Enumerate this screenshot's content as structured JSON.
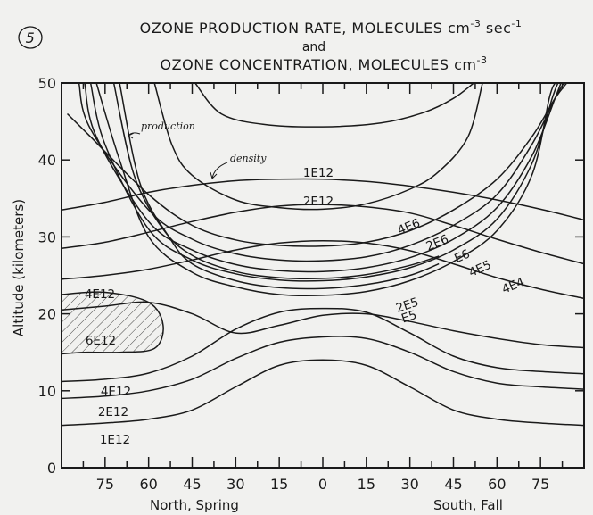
{
  "figure_number": "5",
  "chart_data": {
    "type": "contour",
    "title": {
      "line1_main": "OZONE PRODUCTION RATE, MOLECULES cm",
      "line1_sup1": "-3",
      "line1_mid": " sec",
      "line1_sup2": "-1",
      "line2": "and",
      "line3_main": "OZONE CONCENTRATION, MOLECULES cm",
      "line3_sup": "-3"
    },
    "ylabel": "Altitude (kilometers)",
    "ylim": [
      0,
      50
    ],
    "yticks": [
      "0",
      "10",
      "20",
      "30",
      "40",
      "50"
    ],
    "xticks": [
      "75",
      "60",
      "45",
      "30",
      "15",
      "0",
      "15",
      "30",
      "45",
      "60",
      "75"
    ],
    "xtick_values": [
      -75,
      -60,
      -45,
      -30,
      -15,
      0,
      15,
      30,
      45,
      60,
      75
    ],
    "xlim": [
      -90,
      90
    ],
    "xlabel_left": "North, Spring",
    "xlabel_right": "South, Fall",
    "annotations": [
      "production",
      "density"
    ],
    "production_contours": [
      {
        "label": "4E6",
        "points": [
          [
            -88,
            46
          ],
          [
            -80,
            43
          ],
          [
            -60,
            35.5
          ],
          [
            -45,
            31.5
          ],
          [
            -30,
            29.6
          ],
          [
            -15,
            28.9
          ],
          [
            0,
            28.8
          ],
          [
            15,
            29.3
          ],
          [
            30,
            30.8
          ],
          [
            45,
            33.5
          ],
          [
            60,
            37.5
          ],
          [
            72,
            43
          ],
          [
            80,
            48
          ],
          [
            84,
            50
          ]
        ]
      },
      {
        "label": "2E6",
        "points": [
          [
            -84,
            50
          ],
          [
            -80,
            44
          ],
          [
            -60,
            33.5
          ],
          [
            -45,
            29.7
          ],
          [
            -30,
            27.8
          ],
          [
            -15,
            27
          ],
          [
            0,
            26.9
          ],
          [
            15,
            27.4
          ],
          [
            30,
            28.9
          ],
          [
            45,
            31.5
          ],
          [
            60,
            35.5
          ],
          [
            72,
            42
          ],
          [
            80,
            48
          ],
          [
            83,
            50
          ]
        ]
      },
      {
        "label": "E6",
        "points": [
          [
            -82,
            50
          ],
          [
            -78,
            43
          ],
          [
            -60,
            32
          ],
          [
            -45,
            28.3
          ],
          [
            -30,
            26.4
          ],
          [
            -15,
            25.6
          ],
          [
            0,
            25.5
          ],
          [
            15,
            26
          ],
          [
            30,
            27.3
          ],
          [
            45,
            29.7
          ],
          [
            60,
            33.8
          ],
          [
            72,
            40.5
          ],
          [
            80,
            48
          ],
          [
            82,
            50
          ]
        ]
      },
      {
        "label": "4E5",
        "points": [
          [
            -80,
            50
          ],
          [
            -75,
            42
          ],
          [
            -60,
            31
          ],
          [
            -45,
            27
          ],
          [
            -30,
            25.2
          ],
          [
            -15,
            24.4
          ],
          [
            0,
            24.3
          ],
          [
            15,
            24.8
          ],
          [
            30,
            26
          ],
          [
            45,
            28.3
          ],
          [
            60,
            32.3
          ],
          [
            72,
            39.5
          ],
          [
            79,
            48
          ],
          [
            81,
            50
          ]
        ]
      },
      {
        "label": "4E4",
        "points": [
          [
            -78,
            50
          ],
          [
            -70,
            40
          ],
          [
            -60,
            30
          ],
          [
            -45,
            25.4
          ],
          [
            -30,
            23.5
          ],
          [
            -15,
            22.5
          ],
          [
            0,
            22.4
          ],
          [
            15,
            22.9
          ],
          [
            30,
            24.3
          ],
          [
            45,
            26.8
          ],
          [
            60,
            30.8
          ],
          [
            72,
            38
          ],
          [
            78,
            48
          ],
          [
            80,
            50
          ]
        ]
      },
      {
        "label": "2E5",
        "points": [
          [
            -72,
            50
          ],
          [
            -65,
            38
          ],
          [
            -55,
            31
          ],
          [
            -45,
            27.6
          ],
          [
            -30,
            25.5
          ],
          [
            -15,
            24.7
          ],
          [
            0,
            24.6
          ],
          [
            15,
            25.1
          ],
          [
            30,
            26.3
          ],
          [
            40,
            27.5
          ]
        ]
      },
      {
        "label": "E5",
        "points": [
          [
            -70,
            50
          ],
          [
            -63,
            37
          ],
          [
            -53,
            30
          ],
          [
            -45,
            26.5
          ],
          [
            -30,
            24.3
          ],
          [
            -15,
            23.4
          ],
          [
            0,
            23.3
          ],
          [
            15,
            23.8
          ],
          [
            30,
            25
          ],
          [
            40,
            26.5
          ]
        ]
      },
      {
        "label": "",
        "points": [
          [
            -58,
            50
          ],
          [
            -52,
            42
          ],
          [
            -45,
            38
          ],
          [
            -30,
            34.8
          ],
          [
            -15,
            33.8
          ],
          [
            0,
            33.6
          ],
          [
            15,
            34.3
          ],
          [
            30,
            36.2
          ],
          [
            40,
            38.5
          ],
          [
            50,
            43
          ],
          [
            55,
            50
          ]
        ]
      }
    ],
    "production_top_loop": [
      [
        -44,
        50
      ],
      [
        -35,
        46
      ],
      [
        -20,
        44.6
      ],
      [
        0,
        44.3
      ],
      [
        20,
        44.8
      ],
      [
        35,
        46.2
      ],
      [
        45,
        48
      ],
      [
        52,
        50
      ]
    ],
    "density_contours": [
      {
        "label": "1E12",
        "points": [
          [
            -90,
            33.5
          ],
          [
            -75,
            34.5
          ],
          [
            -60,
            35.8
          ],
          [
            -45,
            36.7
          ],
          [
            -30,
            37.3
          ],
          [
            -15,
            37.5
          ],
          [
            0,
            37.5
          ],
          [
            15,
            37.2
          ],
          [
            30,
            36.6
          ],
          [
            45,
            35.8
          ],
          [
            60,
            34.8
          ],
          [
            75,
            33.6
          ],
          [
            90,
            32.2
          ]
        ]
      },
      {
        "label": "2E12",
        "points": [
          [
            -90,
            28.5
          ],
          [
            -75,
            29.3
          ],
          [
            -60,
            30.6
          ],
          [
            -45,
            32
          ],
          [
            -30,
            33.2
          ],
          [
            -15,
            34
          ],
          [
            0,
            34.2
          ],
          [
            15,
            33.9
          ],
          [
            30,
            33.1
          ],
          [
            45,
            31.5
          ],
          [
            60,
            29.7
          ],
          [
            75,
            28
          ],
          [
            90,
            26.5
          ]
        ]
      },
      {
        "label": "",
        "points": [
          [
            -90,
            24.5
          ],
          [
            -75,
            25
          ],
          [
            -60,
            25.8
          ],
          [
            -45,
            27
          ],
          [
            -30,
            28.3
          ],
          [
            -15,
            29.2
          ],
          [
            0,
            29.5
          ],
          [
            15,
            29.2
          ],
          [
            30,
            28.2
          ],
          [
            45,
            26.5
          ],
          [
            60,
            24.7
          ],
          [
            75,
            23.2
          ],
          [
            90,
            22
          ]
        ]
      },
      {
        "label": "",
        "points": [
          [
            -90,
            20.5
          ],
          [
            -75,
            21
          ],
          [
            -60,
            21.5
          ],
          [
            -45,
            20
          ],
          [
            -30,
            17.5
          ],
          [
            -15,
            18.5
          ],
          [
            0,
            19.8
          ],
          [
            15,
            20
          ],
          [
            30,
            19
          ],
          [
            45,
            17.8
          ],
          [
            60,
            16.8
          ],
          [
            75,
            16
          ],
          [
            90,
            15.6
          ]
        ]
      },
      {
        "label": "4E12",
        "points": [
          [
            -90,
            11.2
          ],
          [
            -75,
            11.5
          ],
          [
            -60,
            12.3
          ],
          [
            -45,
            14.5
          ],
          [
            -30,
            18
          ],
          [
            -15,
            20.2
          ],
          [
            0,
            20.7
          ],
          [
            15,
            20.2
          ],
          [
            30,
            17.5
          ],
          [
            45,
            14.5
          ],
          [
            60,
            13
          ],
          [
            75,
            12.5
          ],
          [
            90,
            12.2
          ]
        ]
      },
      {
        "label": "2E12",
        "points": [
          [
            -90,
            9
          ],
          [
            -75,
            9.3
          ],
          [
            -60,
            10
          ],
          [
            -45,
            11.5
          ],
          [
            -30,
            14.2
          ],
          [
            -15,
            16.3
          ],
          [
            0,
            17
          ],
          [
            15,
            16.8
          ],
          [
            30,
            15
          ],
          [
            45,
            12.5
          ],
          [
            60,
            11
          ],
          [
            75,
            10.5
          ],
          [
            90,
            10.2
          ]
        ]
      },
      {
        "label": "1E12",
        "points": [
          [
            -90,
            5.5
          ],
          [
            -75,
            5.8
          ],
          [
            -60,
            6.3
          ],
          [
            -45,
            7.5
          ],
          [
            -30,
            10.5
          ],
          [
            -15,
            13.3
          ],
          [
            0,
            14
          ],
          [
            15,
            13.3
          ],
          [
            30,
            10.5
          ],
          [
            45,
            7.5
          ],
          [
            60,
            6.3
          ],
          [
            75,
            5.8
          ],
          [
            90,
            5.5
          ]
        ]
      }
    ],
    "density_region": {
      "label": "6E12",
      "points": [
        [
          -90,
          22.5
        ],
        [
          -75,
          22.8
        ],
        [
          -60,
          21.5
        ],
        [
          -55,
          18.5
        ],
        [
          -58,
          15.5
        ],
        [
          -70,
          15
        ],
        [
          -82,
          15
        ],
        [
          -90,
          14.8
        ]
      ]
    },
    "labels_text": {
      "d1E12_top": "1E12",
      "d2E12_top": "2E12",
      "d4E12_left": "4E12",
      "d6E12": "6E12",
      "d4E12_low": "4E12",
      "d2E12_low": "2E12",
      "d1E12_low": "1E12",
      "p4E6": "4E6",
      "p2E6": "2E6",
      "pE6": "E6",
      "p4E5": "4E5",
      "p4E4": "4E4",
      "p2E5": "2E5",
      "pE5": "E5"
    }
  }
}
